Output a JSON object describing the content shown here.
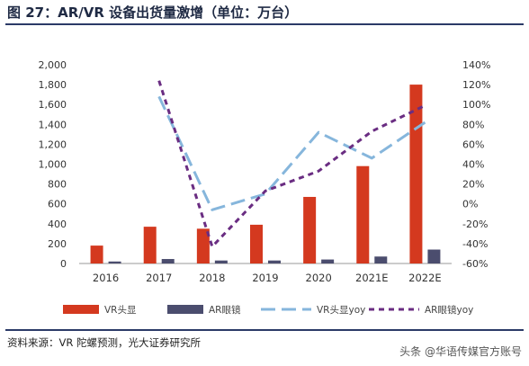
{
  "title": "图 27：AR/VR 设备出货量激增（单位：万台）",
  "source": "资料来源：VR 陀螺预测，光大证券研究所",
  "watermark": "头条 @华语传媒官方账号",
  "chart_data": {
    "type": "bar",
    "categories": [
      "2016",
      "2017",
      "2018",
      "2019",
      "2020",
      "2021E",
      "2022E"
    ],
    "y_left": {
      "min": 0,
      "max": 2000,
      "ticks": [
        0,
        200,
        400,
        600,
        800,
        1000,
        1200,
        1400,
        1600,
        1800,
        2000
      ],
      "tick_labels": [
        "0",
        "200",
        "400",
        "600",
        "800",
        "1,000",
        "1,200",
        "1,400",
        "1,600",
        "1,800",
        "2,000"
      ]
    },
    "y_right": {
      "min": -60,
      "max": 140,
      "ticks": [
        -60,
        -40,
        -20,
        0,
        20,
        40,
        60,
        80,
        100,
        120,
        140
      ],
      "tick_labels": [
        "-60%",
        "-40%",
        "-20%",
        "0%",
        "20%",
        "40%",
        "60%",
        "80%",
        "100%",
        "120%",
        "140%"
      ]
    },
    "series": [
      {
        "name": "VR头显",
        "kind": "bar",
        "axis": "left",
        "color": "#d4391f",
        "values": [
          180,
          370,
          350,
          390,
          670,
          980,
          1800
        ]
      },
      {
        "name": "AR眼镜",
        "kind": "bar",
        "axis": "left",
        "color": "#4b4d6e",
        "values": [
          20,
          45,
          30,
          30,
          40,
          70,
          140
        ]
      },
      {
        "name": "VR头显yoy",
        "kind": "line",
        "axis": "right",
        "color": "#86b6dc",
        "dash": "long",
        "values": [
          null,
          108,
          -6,
          10,
          72,
          46,
          82
        ]
      },
      {
        "name": "AR眼镜yoy",
        "kind": "line",
        "axis": "right",
        "color": "#6a2d82",
        "dash": "short",
        "values": [
          null,
          124,
          -43,
          13,
          33,
          73,
          99
        ]
      }
    ],
    "legend": {
      "position": "bottom"
    },
    "grid": false
  }
}
